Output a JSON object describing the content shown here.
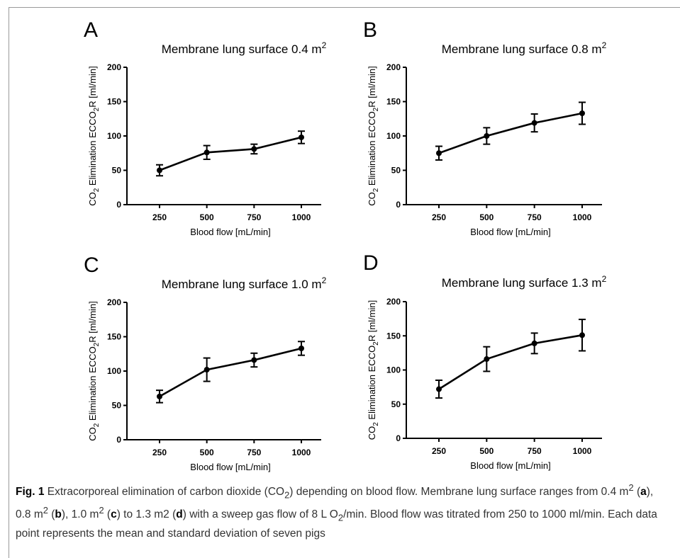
{
  "caption": {
    "fig_label": "Fig. 1",
    "seg1": " Extracorporeal elimination of carbon dioxide (CO",
    "seg1_sub": "2",
    "seg2": ") depending on blood flow. Membrane lung surface ranges from 0.4 m",
    "seg2_sup": "2",
    "seg3": " (",
    "panel_a": "a",
    "seg4": "), 0.8 m",
    "seg4_sup": "2",
    "seg5": " (",
    "panel_b": "b",
    "seg6": "), 1.0 m",
    "seg6_sup": "2",
    "seg7": " (",
    "panel_c": "c",
    "seg8": ") to 1.3 m2 (",
    "panel_d": "d",
    "seg9": ") with a sweep gas flow of 8 L O",
    "seg9_sub": "2",
    "seg10": "/min. Blood flow was titrated from 250 to 1000 ml/min. Each data point represents the mean and standard deviation of seven pigs"
  },
  "chart_data": [
    {
      "type": "line",
      "panel": "A",
      "title": "Membrane lung surface 0.4 m",
      "title_sup": "2",
      "ylabel_pre": "CO",
      "ylabel_sub": "2",
      "ylabel_mid": " Elimination ECCO",
      "ylabel_sub2": "2",
      "ylabel_post": "R [ml/min]",
      "xlabel": "Blood flow [mL/min]",
      "categories": [
        "250",
        "500",
        "750",
        "1000"
      ],
      "ylim": [
        0,
        200
      ],
      "yticks": [
        "0",
        "50",
        "100",
        "150",
        "200"
      ],
      "series": [
        {
          "values": [
            50,
            76,
            81,
            98
          ],
          "err": [
            8,
            10,
            7,
            9
          ]
        }
      ]
    },
    {
      "type": "line",
      "panel": "B",
      "title": "Membrane lung surface 0.8 m",
      "title_sup": "2",
      "ylabel_pre": "CO",
      "ylabel_sub": "2",
      "ylabel_mid": " Elimination ECCO",
      "ylabel_sub2": "2",
      "ylabel_post": "R [ml/min]",
      "xlabel": "Blood flow [mL/min]",
      "categories": [
        "250",
        "500",
        "750",
        "1000"
      ],
      "ylim": [
        0,
        200
      ],
      "yticks": [
        "0",
        "50",
        "100",
        "150",
        "200"
      ],
      "series": [
        {
          "values": [
            75,
            100,
            119,
            133
          ],
          "err": [
            10,
            12,
            13,
            16
          ]
        }
      ]
    },
    {
      "type": "line",
      "panel": "C",
      "title": "Membrane lung surface 1.0 m",
      "title_sup": "2",
      "ylabel_pre": "CO",
      "ylabel_sub": "2",
      "ylabel_mid": " Elimination ECCO",
      "ylabel_sub2": "2",
      "ylabel_post": "R [ml/min]",
      "xlabel": "Blood flow [mL/min]",
      "categories": [
        "250",
        "500",
        "750",
        "1000"
      ],
      "ylim": [
        0,
        200
      ],
      "yticks": [
        "0",
        "50",
        "100",
        "150",
        "200"
      ],
      "series": [
        {
          "values": [
            63,
            102,
            116,
            133
          ],
          "err": [
            9,
            17,
            10,
            10
          ]
        }
      ]
    },
    {
      "type": "line",
      "panel": "D",
      "title": "Membrane lung surface 1.3 m",
      "title_sup": "2",
      "ylabel_pre": "CO",
      "ylabel_sub": "2",
      "ylabel_mid": " Elimination ECCO",
      "ylabel_sub2": "2",
      "ylabel_post": "R [ml/min]",
      "xlabel": "Blood flow [mL/min]",
      "categories": [
        "250",
        "500",
        "750",
        "1000"
      ],
      "ylim": [
        0,
        200
      ],
      "yticks": [
        "0",
        "50",
        "100",
        "150",
        "200"
      ],
      "series": [
        {
          "values": [
            72,
            116,
            139,
            151
          ],
          "err": [
            13,
            18,
            15,
            23
          ]
        }
      ]
    }
  ]
}
